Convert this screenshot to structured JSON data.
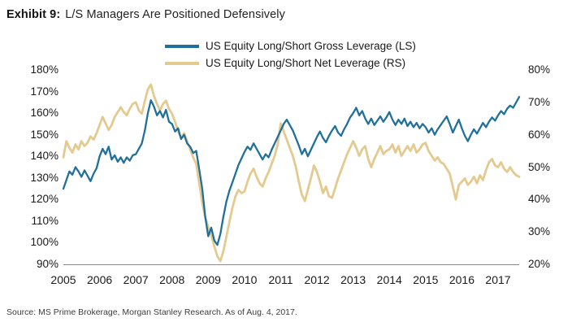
{
  "title": {
    "exhibit_label": "Exhibit 9:",
    "text": "L/S Managers Are Positioned Defensively"
  },
  "source": "Source: MS Prime Brokerage, Morgan Stanley Research. As of Aug. 4, 2017.",
  "colors": {
    "gross_line": "#20709B",
    "net_line": "#E4CA8F",
    "axis_line": "#8A8A8A",
    "text": "#1A1A1A"
  },
  "chart_data": {
    "type": "line",
    "title": "Exhibit 9: L/S Managers Are Positioned Defensively",
    "grid": false,
    "legend_position": "top-center",
    "legend": [
      {
        "label": "US Equity Long/Short Gross Leverage (LS)",
        "color_key": "gross_line"
      },
      {
        "label": "US Equity Long/Short Net Leverage (RS)",
        "color_key": "net_line"
      }
    ],
    "x_axis": {
      "tick_labels": [
        "2005",
        "2006",
        "2007",
        "2008",
        "2009",
        "2010",
        "2011",
        "2012",
        "2013",
        "2014",
        "2015",
        "2016",
        "2017"
      ],
      "tick_values": [
        2005,
        2006,
        2007,
        2008,
        2009,
        2010,
        2011,
        2012,
        2013,
        2014,
        2015,
        2016,
        2017
      ],
      "range": [
        2005.0,
        2017.583
      ]
    },
    "left_axis": {
      "unit": "%",
      "tick_values": [
        180,
        170,
        160,
        150,
        140,
        130,
        120,
        110,
        100,
        90
      ],
      "range": [
        90,
        180
      ]
    },
    "right_axis": {
      "unit": "%",
      "tick_values": [
        80,
        70,
        60,
        50,
        40,
        30,
        20
      ],
      "range": [
        20,
        80
      ]
    },
    "x_encoding": {
      "start": 2005.0,
      "step_years": 0.08333,
      "note": "monthly data points, through Aug 2017"
    },
    "series": [
      {
        "name": "US Equity Long/Short Gross Leverage (LS)",
        "axis": "left",
        "color_key": "gross_line",
        "values": [
          125,
          129,
          133,
          131.5,
          135,
          133,
          130.5,
          133.5,
          131,
          128.5,
          132,
          134.5,
          140,
          143.5,
          141,
          144.5,
          138.5,
          140.5,
          137.5,
          139.5,
          137,
          139.5,
          138,
          140.5,
          141,
          143.5,
          146,
          152,
          160,
          166,
          163,
          159,
          161,
          158,
          161.5,
          156,
          155,
          151.5,
          153,
          148,
          150,
          146,
          144.5,
          141.5,
          142.5,
          134,
          125,
          112,
          103,
          107,
          101,
          99,
          104,
          112,
          119,
          124,
          128,
          132,
          136,
          139,
          142,
          144.5,
          143,
          146,
          143.5,
          141,
          138.5,
          141,
          139.5,
          143,
          146,
          149,
          152,
          155,
          157,
          154.5,
          152,
          148.5,
          145,
          141,
          143.5,
          140,
          143,
          146,
          149,
          151.5,
          148.5,
          146.5,
          149.5,
          152,
          154,
          151,
          149.5,
          152.5,
          155,
          158,
          160,
          162.5,
          159,
          161,
          157.5,
          155,
          157.5,
          154.5,
          156.5,
          158.5,
          156,
          158,
          160.5,
          157,
          154.5,
          157,
          155,
          157.5,
          154,
          156,
          153.5,
          155.5,
          153,
          155,
          153.5,
          151,
          153,
          150,
          152.5,
          154.5,
          156.5,
          158.5,
          155,
          151,
          154,
          157,
          153,
          149.5,
          147,
          150,
          152.5,
          150.5,
          153,
          155.5,
          153.5,
          156,
          158,
          156.5,
          159,
          161,
          159.5,
          162,
          163.5,
          162.5,
          165,
          167.5
        ]
      },
      {
        "name": "US Equity Long/Short Net Leverage (RS)",
        "axis": "right",
        "color_key": "net_line",
        "values": [
          53,
          58,
          56,
          54.5,
          57,
          55.5,
          58,
          56.5,
          57.5,
          59.5,
          58.5,
          60.5,
          63,
          65.5,
          63.5,
          61.5,
          63,
          65.5,
          67,
          68.5,
          67,
          66,
          68,
          69.5,
          70,
          67.5,
          66.5,
          70.5,
          74,
          75.5,
          72,
          69.5,
          67.5,
          69.5,
          70.5,
          68,
          66.5,
          64,
          61,
          59,
          60.5,
          58,
          55.5,
          53,
          51,
          45,
          39,
          34.5,
          31.5,
          29,
          25.5,
          22.5,
          21,
          24,
          28.5,
          33,
          37.5,
          41,
          43,
          42,
          42.5,
          45.5,
          48,
          49.5,
          47,
          45,
          44,
          46.5,
          48.5,
          51,
          53.5,
          57,
          63.5,
          61,
          58.5,
          56,
          53.5,
          50,
          45.5,
          41.5,
          39.5,
          43,
          46.5,
          50.5,
          48.5,
          45.5,
          42,
          44,
          41,
          40.5,
          43.5,
          46.5,
          49,
          51.5,
          54,
          56,
          58,
          56,
          53.5,
          55.5,
          56.5,
          52.5,
          50,
          52.5,
          54.5,
          56.5,
          54,
          55,
          55.5,
          57,
          54.5,
          56.5,
          53.5,
          55,
          56.5,
          55,
          57,
          54.5,
          55.5,
          57,
          57.5,
          55,
          53.5,
          52,
          53,
          51.5,
          51,
          49.5,
          48,
          44,
          40,
          44.5,
          45.5,
          46.5,
          44.5,
          45.5,
          47,
          45,
          47.5,
          46,
          49,
          51.5,
          52.5,
          50.5,
          50,
          51.5,
          49.5,
          48.5,
          50,
          48.5,
          47.5,
          47
        ]
      }
    ]
  }
}
